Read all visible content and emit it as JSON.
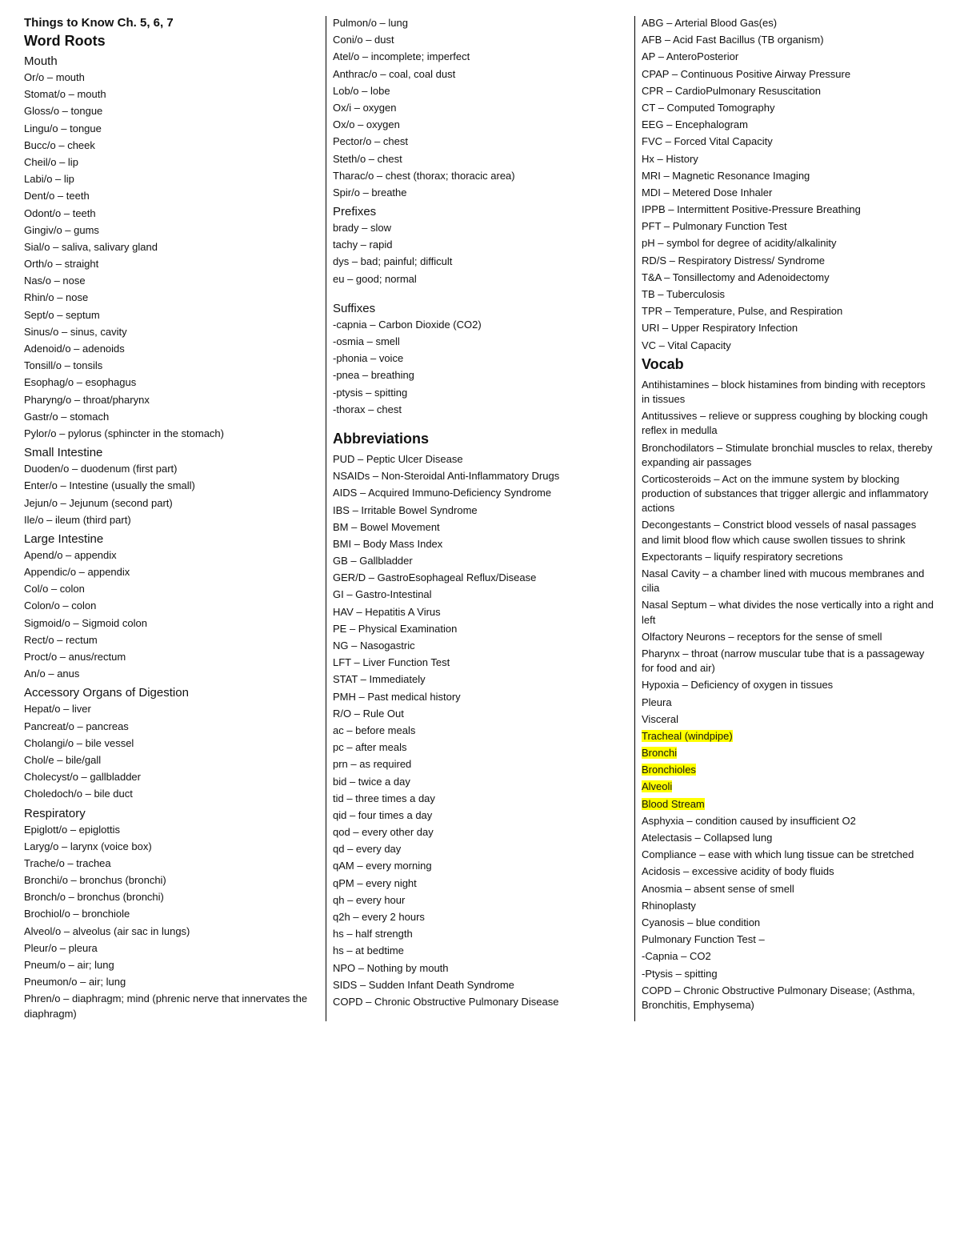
{
  "doc_title": "Things to Know Ch. 5, 6, 7",
  "sections": {
    "word_roots_heading": "Word Roots",
    "mouth_heading": "Mouth",
    "mouth": [
      "Or/o – mouth",
      "Stomat/o – mouth",
      "Gloss/o – tongue",
      "Lingu/o – tongue",
      "Bucc/o – cheek",
      "Cheil/o – lip",
      "Labi/o – lip",
      "Dent/o – teeth",
      "Odont/o – teeth",
      "Gingiv/o – gums",
      "Sial/o – saliva, salivary gland",
      "Orth/o – straight",
      "Nas/o – nose",
      "Rhin/o – nose",
      "Sept/o – septum",
      "Sinus/o – sinus, cavity",
      "Adenoid/o – adenoids",
      "Tonsill/o – tonsils",
      "Esophag/o – esophagus",
      "Pharyng/o – throat/pharynx",
      "Gastr/o – stomach",
      "Pylor/o – pylorus (sphincter in the stomach)"
    ],
    "small_intestine_heading": "Small Intestine",
    "small_intestine": [
      "Duoden/o – duodenum (first part)",
      "Enter/o – Intestine (usually the small)",
      "Jejun/o – Jejunum (second part)",
      "Ile/o – ileum (third part)"
    ],
    "large_intestine_heading": "Large Intestine",
    "large_intestine": [
      "Apend/o – appendix",
      "Appendic/o – appendix",
      "Col/o – colon",
      "Colon/o – colon",
      "Sigmoid/o – Sigmoid colon",
      "Rect/o – rectum",
      "Proct/o – anus/rectum",
      "An/o – anus"
    ],
    "accessory_heading": "Accessory Organs of Digestion",
    "accessory": [
      "Hepat/o – liver",
      "Pancreat/o – pancreas",
      "Cholangi/o – bile vessel",
      "Chol/e – bile/gall",
      "Cholecyst/o – gallbladder",
      "Choledoch/o – bile duct"
    ],
    "respiratory_heading": "Respiratory",
    "respiratory": [
      "Epiglott/o – epiglottis",
      "Laryg/o – larynx (voice box)",
      "Trache/o – trachea",
      "Bronchi/o – bronchus (bronchi)",
      "Bronch/o – bronchus (bronchi)",
      "Brochiol/o – bronchiole",
      "Alveol/o – alveolus (air sac in lungs)",
      "Pleur/o – pleura",
      "Pneum/o – air; lung",
      "Pneumon/o – air; lung",
      "Phren/o – diaphragm; mind (phrenic nerve that innervates the diaphragm)",
      "Pulmon/o – lung",
      "Coni/o – dust",
      "Atel/o – incomplete; imperfect",
      "Anthrac/o – coal, coal dust",
      "Lob/o – lobe",
      "Ox/i – oxygen",
      "Ox/o – oxygen",
      "Pector/o – chest",
      "Steth/o – chest",
      "Tharac/o – chest (thorax; thoracic area)",
      "Spir/o – breathe"
    ],
    "prefixes_heading": "Prefixes",
    "prefixes": [
      "brady – slow",
      "tachy – rapid",
      "dys – bad; painful; difficult",
      "eu – good; normal"
    ],
    "suffixes_heading": "Suffixes",
    "suffixes": [
      "-capnia – Carbon Dioxide (CO2)",
      "-osmia – smell",
      "-phonia – voice",
      "-pnea – breathing",
      "-ptysis – spitting",
      "-thorax – chest"
    ],
    "abbrev_heading": "Abbreviations",
    "abbrev": [
      "PUD – Peptic Ulcer Disease",
      "NSAIDs – Non-Steroidal Anti-Inflammatory Drugs",
      "AIDS – Acquired Immuno-Deficiency Syndrome",
      "IBS – Irritable Bowel Syndrome",
      "BM – Bowel Movement",
      "BMI – Body Mass Index",
      "GB – Gallbladder",
      "GER/D – GastroEsophageal Reflux/Disease",
      "GI – Gastro-Intestinal",
      "HAV – Hepatitis A Virus",
      "PE – Physical Examination",
      "NG – Nasogastric",
      "LFT – Liver Function Test",
      "STAT – Immediately",
      "PMH – Past medical history",
      "R/O – Rule Out",
      "ac – before meals",
      "pc – after meals",
      "prn – as required",
      "bid – twice a day",
      "tid – three times a day",
      "qid – four times a day",
      "qod – every other day",
      "qd – every day",
      "qAM – every morning",
      "qPM – every night",
      "qh – every hour",
      "q2h – every 2 hours",
      "hs – half strength",
      "hs – at bedtime",
      "NPO – Nothing by mouth",
      "SIDS – Sudden Infant Death Syndrome",
      "COPD – Chronic Obstructive Pulmonary Disease",
      "ABG – Arterial Blood Gas(es)",
      "AFB – Acid Fast Bacillus (TB organism)",
      "AP – AnteroPosterior",
      "CPAP – Continuous Positive Airway Pressure",
      "CPR – CardioPulmonary Resuscitation",
      "CT – Computed Tomography",
      "EEG – Encephalogram",
      "FVC – Forced Vital Capacity",
      "Hx – History",
      "MRI – Magnetic Resonance Imaging",
      "MDI – Metered Dose Inhaler",
      "IPPB – Intermittent Positive-Pressure Breathing",
      "PFT – Pulmonary Function Test",
      "pH – symbol for degree of acidity/alkalinity",
      "RD/S – Respiratory Distress/ Syndrome",
      "T&A – Tonsillectomy and Adenoidectomy",
      "TB – Tuberculosis",
      "TPR – Temperature, Pulse, and Respiration",
      "URI – Upper Respiratory Infection",
      "VC – Vital Capacity"
    ],
    "vocab_heading": "Vocab",
    "vocab_pre": [
      "Antihistamines – block histamines from binding with receptors in tissues",
      "Antitussives – relieve or suppress coughing by blocking cough reflex in medulla",
      "Bronchodilators – Stimulate bronchial muscles to relax, thereby expanding air passages",
      "Corticosteroids – Act on the immune system by blocking production of substances that trigger allergic and inflammatory actions",
      "Decongestants – Constrict blood vessels of nasal passages and limit blood flow which cause swollen tissues to shrink",
      "Expectorants – liquify respiratory secretions",
      "Nasal Cavity – a chamber lined with mucous membranes and cilia",
      "Nasal Septum – what divides the nose vertically into a right and left",
      "Olfactory Neurons – receptors for the sense of smell",
      "Pharynx – throat (narrow muscular tube that is a passageway for food and air)",
      "Hypoxia – Deficiency of oxygen in tissues",
      "Pleura",
      "Visceral"
    ],
    "vocab_hl": [
      "Tracheal (windpipe)",
      "Bronchi",
      "Bronchioles",
      "Alveoli",
      "Blood Stream"
    ],
    "vocab_post": [
      "Asphyxia – condition caused by insufficient O2",
      "Atelectasis – Collapsed lung",
      "Compliance – ease with which lung tissue can be stretched",
      "Acidosis – excessive acidity of body fluids",
      "Anosmia – absent sense of smell",
      "Rhinoplasty",
      "Cyanosis – blue condition",
      "Pulmonary Function Test –",
      "-Capnia – CO2",
      "-Ptysis – spitting",
      "COPD – Chronic Obstructive Pulmonary Disease; (Asthma, Bronchitis, Emphysema)"
    ]
  }
}
